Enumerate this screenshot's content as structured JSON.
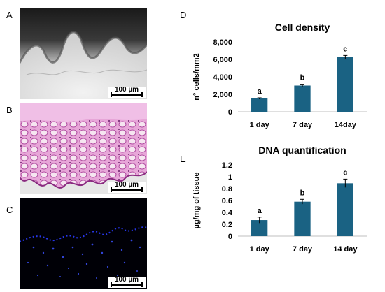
{
  "panels": {
    "A": {
      "letter": "A",
      "scalebar": "100 µm"
    },
    "B": {
      "letter": "B",
      "scalebar": "100 µm"
    },
    "C": {
      "letter": "C",
      "scalebar": "100 µm"
    },
    "D": {
      "letter": "D"
    },
    "E": {
      "letter": "E"
    }
  },
  "chart_data": [
    {
      "type": "bar",
      "title": "Cell density",
      "xlabel": "",
      "ylabel": "n° cells/mm2",
      "categories": [
        "1 day",
        "7 day",
        "14day"
      ],
      "values": [
        1520,
        3000,
        6250
      ],
      "errors": [
        80,
        150,
        200
      ],
      "significance": [
        "a",
        "b",
        "c"
      ],
      "ylim": [
        0,
        8000
      ],
      "yticks": [
        "0",
        "2,000",
        "4,000",
        "6,000",
        "8,000"
      ],
      "ytick_values": [
        0,
        2000,
        4000,
        6000,
        8000
      ],
      "bar_color": "#1a6283",
      "grid": false
    },
    {
      "type": "bar",
      "title": "DNA quantification",
      "xlabel": "",
      "ylabel": "µg/mg of tissue",
      "categories": [
        "1 day",
        "7 day",
        "14 day"
      ],
      "values": [
        0.27,
        0.58,
        0.89
      ],
      "errors": [
        0.05,
        0.04,
        0.07
      ],
      "significance": [
        "a",
        "b",
        "c"
      ],
      "ylim": [
        0,
        1.2
      ],
      "yticks": [
        "0",
        "0.2",
        "0.4",
        "0.6",
        "0.8",
        "1",
        "1.2"
      ],
      "ytick_values": [
        0,
        0.2,
        0.4,
        0.6,
        0.8,
        1.0,
        1.2
      ],
      "bar_color": "#1a6283",
      "grid": false
    }
  ]
}
